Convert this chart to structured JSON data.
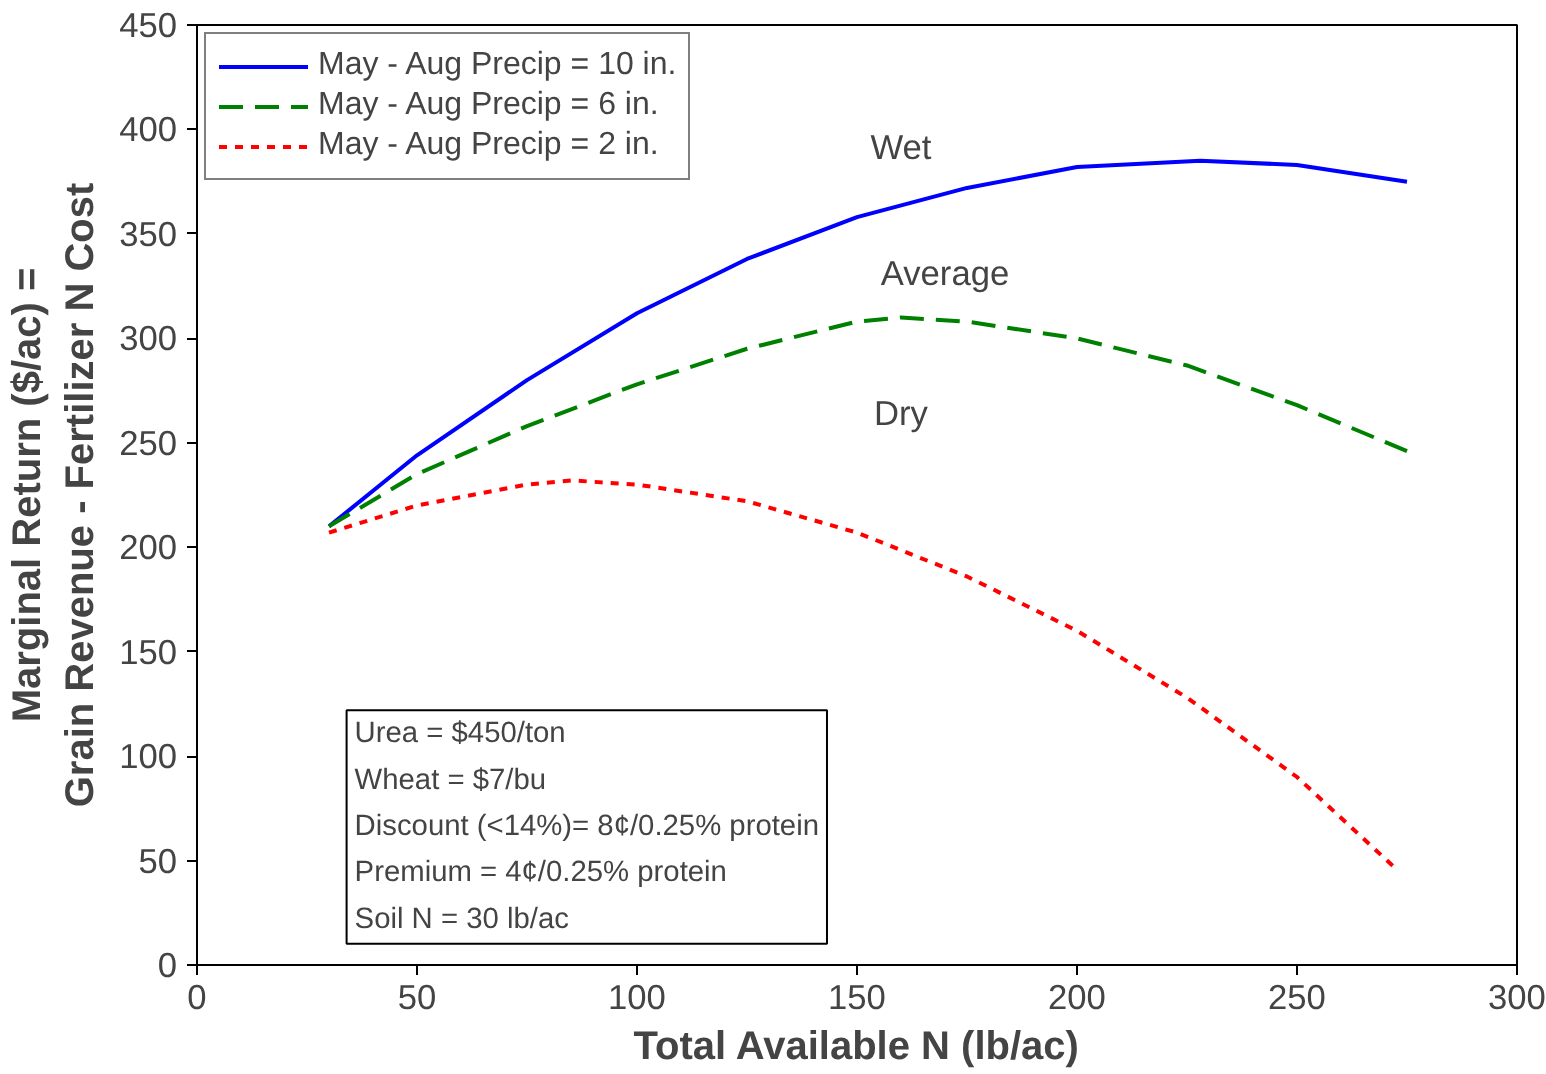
{
  "chart_data": {
    "type": "line",
    "xlabel": "Total Available N (lb/ac)",
    "ylabel": "Marginal Return ($/ac) =\nGrain Revenue - Fertilizer N Cost",
    "xlim": [
      0,
      300
    ],
    "xticks": [
      0,
      50,
      100,
      150,
      200,
      250,
      300
    ],
    "ylim": [
      0,
      450
    ],
    "yticks": [
      0,
      50,
      100,
      150,
      200,
      250,
      300,
      350,
      400,
      450
    ],
    "grid": false,
    "legend": "top left",
    "series": [
      {
        "name": "May - Aug Precip = 10 in.",
        "color": "#0000ff",
        "line_style": "solid",
        "x": [
          30,
          50,
          75,
          100,
          125,
          150,
          175,
          200,
          228,
          250,
          275
        ],
        "values": [
          210,
          244,
          280,
          312,
          338,
          358,
          372,
          382,
          385,
          383,
          375
        ]
      },
      {
        "name": "May - Aug Precip = 6 in.",
        "color": "#008000",
        "line_style": "dashed",
        "x": [
          30,
          50,
          75,
          100,
          125,
          150,
          160,
          175,
          200,
          225,
          250,
          275
        ],
        "values": [
          210,
          235,
          258,
          278,
          295,
          308,
          310,
          308,
          300,
          287,
          268,
          246
        ]
      },
      {
        "name": "May - Aug Precip = 2 in.",
        "color": "#ff0000",
        "line_style": "dotted",
        "x": [
          30,
          50,
          75,
          85,
          100,
          125,
          150,
          175,
          200,
          225,
          250,
          272
        ],
        "values": [
          207,
          220,
          230,
          232,
          230,
          222,
          207,
          186,
          160,
          128,
          90,
          47
        ]
      }
    ],
    "annotations": [
      "Wet",
      "Average",
      "Dry",
      "Urea = $450/ton",
      "Wheat = $7/bu",
      "Discount (<14%)= 8¢/0.25% protein",
      "Premium = 4¢/0.25% protein",
      "Soil N = 30 lb/ac"
    ]
  }
}
